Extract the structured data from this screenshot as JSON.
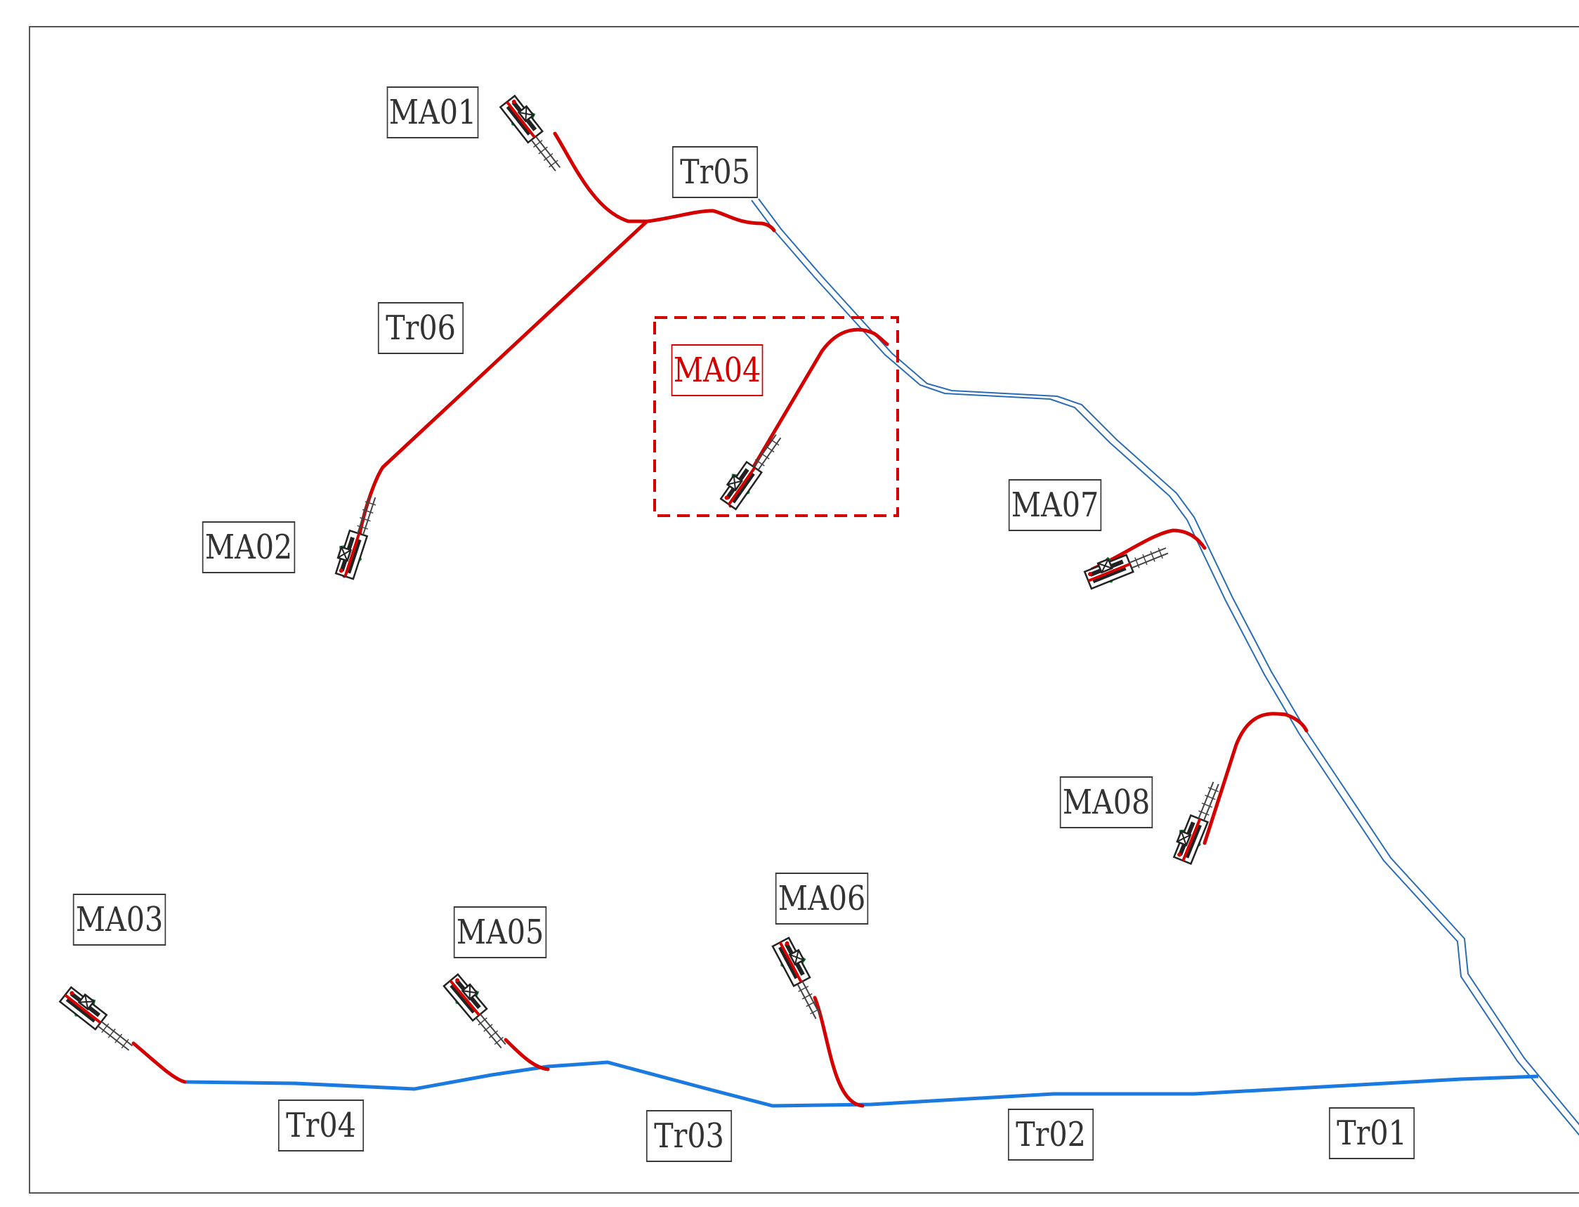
{
  "colors": {
    "branch": "#d40000",
    "main_line": "#1a7ae0",
    "river_outline": "#2a6db5",
    "machine_body": "#222222",
    "machine_cabin": "#22e07a",
    "frame": "#555555"
  },
  "labels": {
    "ma01": "MA01",
    "ma02": "MA02",
    "ma03": "MA03",
    "ma04": "MA04",
    "ma05": "MA05",
    "ma06": "MA06",
    "ma07": "MA07",
    "ma08": "MA08",
    "tr01": "Tr01",
    "tr02": "Tr02",
    "tr03": "Tr03",
    "tr04": "Tr04",
    "tr05": "Tr05",
    "tr06": "Tr06"
  },
  "highlighted": "MA04"
}
